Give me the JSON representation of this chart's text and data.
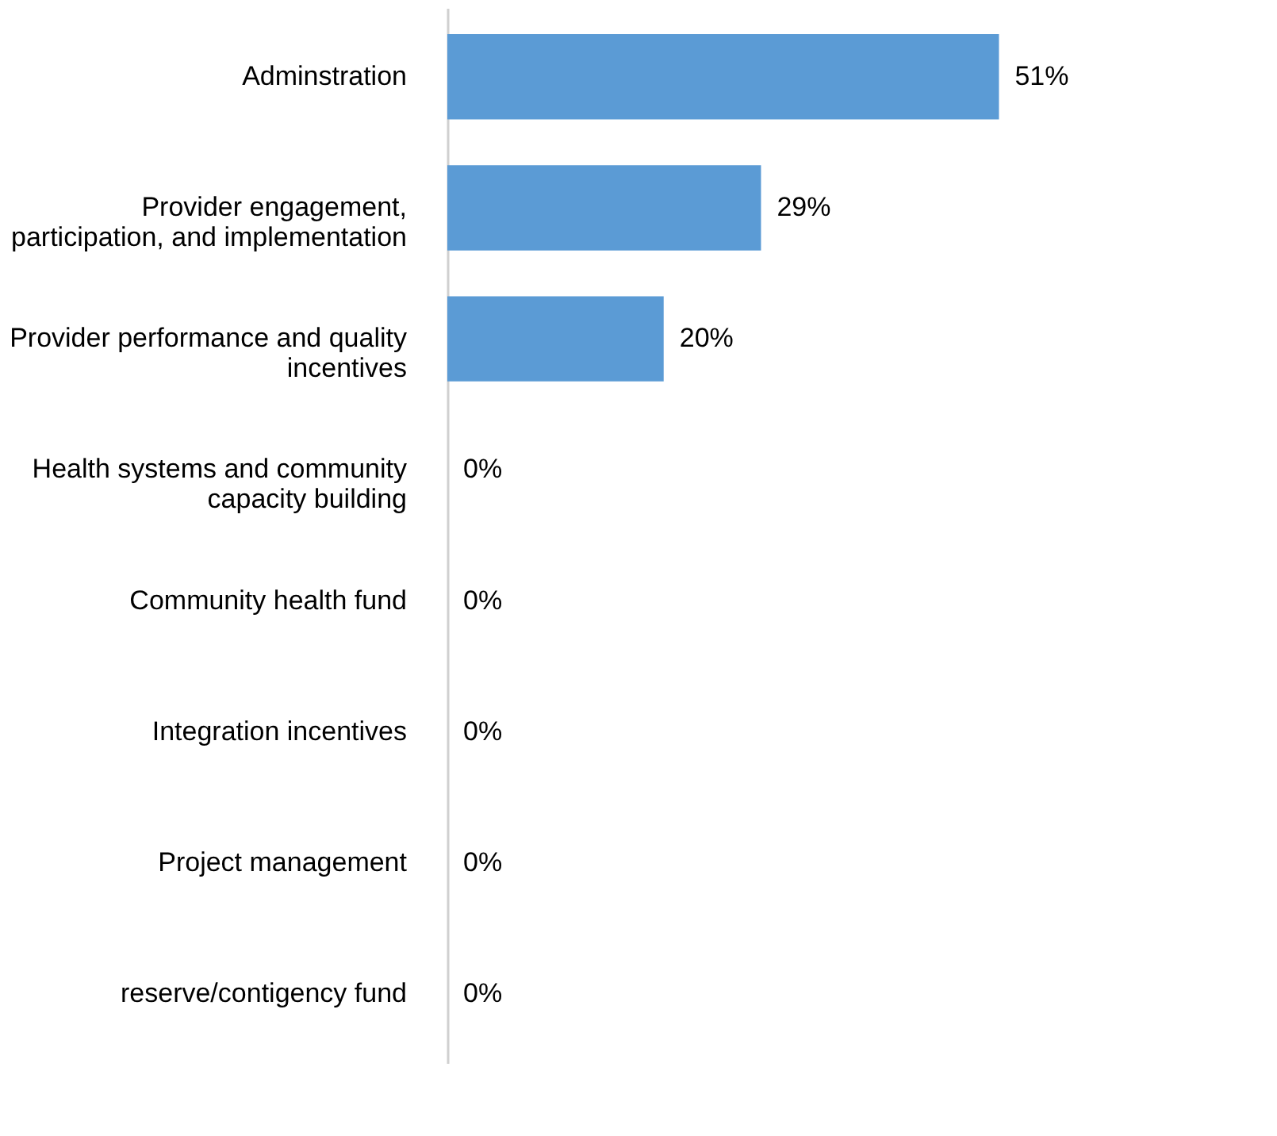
{
  "chart_data": {
    "type": "bar",
    "orientation": "horizontal",
    "categories": [
      "Adminstration",
      "Provider engagement, participation, and implementation",
      "Provider performance and quality incentives",
      "Health systems and community capacity building",
      "Community health fund",
      "Integration incentives",
      "Project management",
      "reserve/contigency fund"
    ],
    "values": [
      51,
      29,
      20,
      0,
      0,
      0,
      0,
      0
    ],
    "value_labels": [
      "51%",
      "29%",
      "20%",
      "0%",
      "0%",
      "0%",
      "0%",
      "0%"
    ],
    "color": "#5b9bd5"
  }
}
